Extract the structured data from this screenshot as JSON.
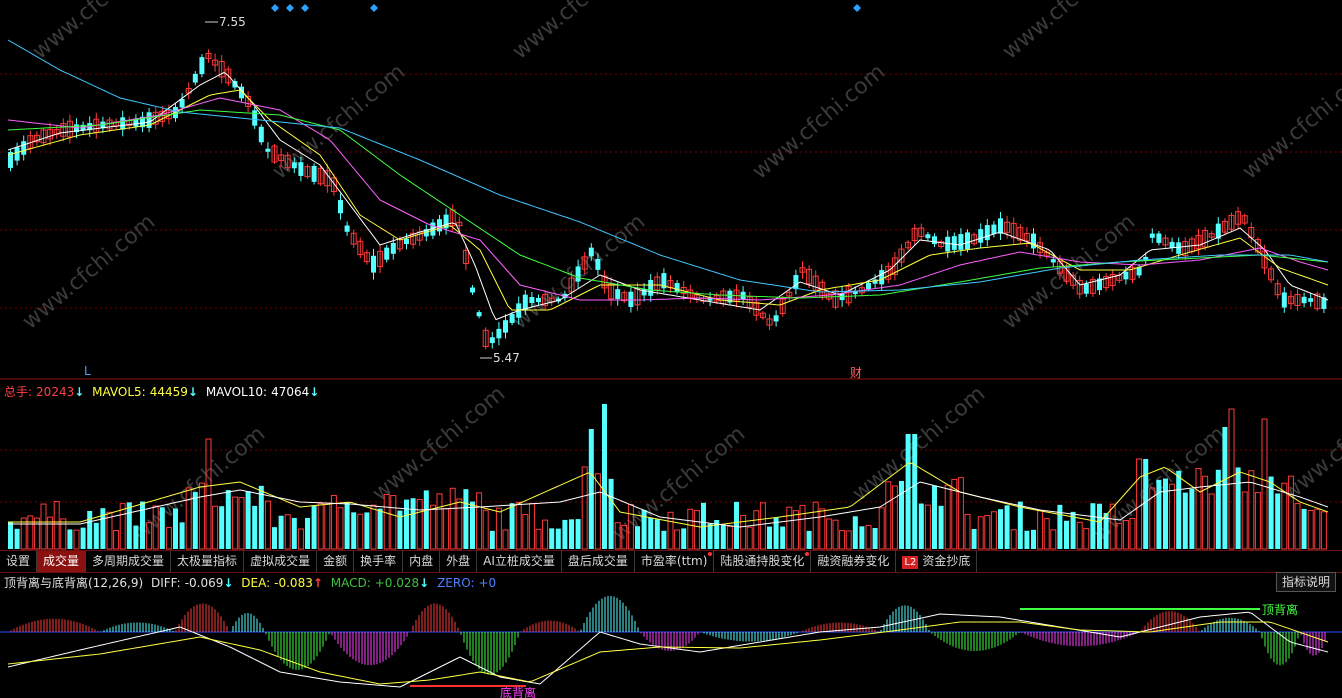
{
  "watermark": "www.cfchi.com",
  "price_chart": {
    "high_label": "7.55",
    "low_label": "5.47",
    "marker_L": "L",
    "marker_cai": "财"
  },
  "volume_legend": {
    "total_label": "总手:",
    "total_value": "20243",
    "mavol5_label": "MAVOL5:",
    "mavol5_value": "44459",
    "mavol10_label": "MAVOL10:",
    "mavol10_value": "47064",
    "arrow_down": "↓"
  },
  "tabs": [
    {
      "label": "设置",
      "active": false,
      "dot": false
    },
    {
      "label": "成交量",
      "active": true,
      "dot": false
    },
    {
      "label": "多周期成交量",
      "active": false,
      "dot": false
    },
    {
      "label": "太极量指标",
      "active": false,
      "dot": false
    },
    {
      "label": "虚拟成交量",
      "active": false,
      "dot": false
    },
    {
      "label": "金额",
      "active": false,
      "dot": false
    },
    {
      "label": "换手率",
      "active": false,
      "dot": false
    },
    {
      "label": "内盘",
      "active": false,
      "dot": false
    },
    {
      "label": "外盘",
      "active": false,
      "dot": false
    },
    {
      "label": "AI立桩成交量",
      "active": false,
      "dot": false
    },
    {
      "label": "盘后成交量",
      "active": false,
      "dot": false
    },
    {
      "label": "市盈率(ttm)",
      "active": false,
      "dot": true
    },
    {
      "label": "陆股通持股变化",
      "active": false,
      "dot": true
    },
    {
      "label": "融资融券变化",
      "active": false,
      "dot": false
    },
    {
      "label": "资金抄底",
      "active": false,
      "dot": false,
      "badge": "L2"
    }
  ],
  "macd_legend": {
    "name": "顶背离与底背离(12,26,9)",
    "diff_label": "DIFF:",
    "diff_value": "-0.069",
    "dea_label": "DEA:",
    "dea_value": "-0.083",
    "macd_label": "MACD:",
    "macd_value": "+0.028",
    "zero_label": "ZERO:",
    "zero_value": "+0",
    "arrow_down": "↓",
    "arrow_up": "↑"
  },
  "macd_annotations": {
    "top_divergence": "顶背离",
    "bottom_divergence": "底背离"
  },
  "indicator_help_label": "指标说明",
  "colors": {
    "up": "#ff3a3a",
    "down": "#54ffff",
    "ma5": "#ffffff",
    "ma10": "#ffff40",
    "ma20": "#ff60ff",
    "ma30": "#40ff40",
    "ma60": "#40c8ff",
    "grid": "#7a0000"
  }
}
